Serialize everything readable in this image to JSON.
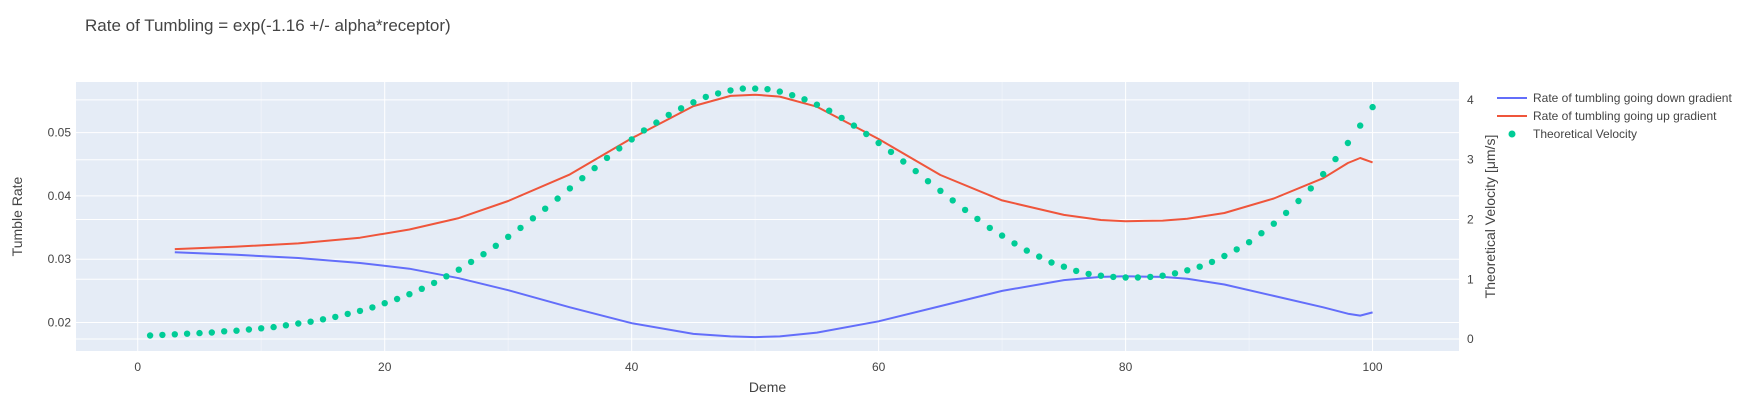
{
  "chart_data": {
    "type": "line",
    "title": "Rate of Tumbling = exp(-1.16 +/- alpha*receptor)",
    "xlabel": "Deme",
    "ylabel": "Tumble Rate",
    "y2label": "Theoretical Velocity [μm/s]",
    "xlim": [
      -5,
      107
    ],
    "ylim": [
      0.0155,
      0.058
    ],
    "y2lim": [
      -0.2,
      4.3
    ],
    "xticks": [
      0,
      20,
      40,
      60,
      80,
      100
    ],
    "yticks": [
      0.02,
      0.03,
      0.04,
      0.05
    ],
    "y2ticks": [
      0,
      1,
      2,
      3,
      4
    ],
    "grid": true,
    "legend_position": "top-right",
    "background": "#e5ecf6",
    "series": [
      {
        "name": "Rate of tumbling going down gradient",
        "mode": "lines",
        "axis": "y",
        "color": "#636efa",
        "x": [
          3,
          8,
          13,
          18,
          22,
          26,
          30,
          35,
          40,
          45,
          48,
          50,
          52,
          55,
          60,
          65,
          70,
          75,
          78,
          80,
          83,
          85,
          88,
          92,
          96,
          98,
          99,
          100
        ],
        "y": [
          0.0311,
          0.0307,
          0.0302,
          0.0294,
          0.0285,
          0.027,
          0.0251,
          0.0224,
          0.0199,
          0.0182,
          0.0178,
          0.0177,
          0.0178,
          0.0184,
          0.0202,
          0.0226,
          0.025,
          0.0267,
          0.0272,
          0.0273,
          0.0272,
          0.0269,
          0.026,
          0.0242,
          0.0224,
          0.0214,
          0.0211,
          0.0216
        ]
      },
      {
        "name": "Rate of tumbling going up gradient",
        "mode": "lines",
        "axis": "y",
        "color": "#ef553b",
        "x": [
          3,
          8,
          13,
          18,
          22,
          26,
          30,
          35,
          40,
          45,
          48,
          50,
          52,
          55,
          60,
          65,
          70,
          75,
          78,
          80,
          83,
          85,
          88,
          92,
          96,
          98,
          99,
          100
        ],
        "y": [
          0.0316,
          0.032,
          0.0325,
          0.0334,
          0.0347,
          0.0365,
          0.0392,
          0.0434,
          0.0491,
          0.0542,
          0.0558,
          0.056,
          0.0557,
          0.0541,
          0.049,
          0.0433,
          0.0393,
          0.037,
          0.0362,
          0.036,
          0.0361,
          0.0364,
          0.0373,
          0.0396,
          0.0428,
          0.0452,
          0.046,
          0.0453
        ]
      },
      {
        "name": "Theoretical Velocity",
        "mode": "markers",
        "axis": "y2",
        "color": "#00cc96",
        "x": [
          1,
          2,
          3,
          4,
          5,
          6,
          7,
          8,
          9,
          10,
          11,
          12,
          13,
          14,
          15,
          16,
          17,
          18,
          19,
          20,
          21,
          22,
          23,
          24,
          25,
          26,
          27,
          28,
          29,
          30,
          31,
          32,
          33,
          34,
          35,
          36,
          37,
          38,
          39,
          40,
          41,
          42,
          43,
          44,
          45,
          46,
          47,
          48,
          49,
          50,
          51,
          52,
          53,
          54,
          55,
          56,
          57,
          58,
          59,
          60,
          61,
          62,
          63,
          64,
          65,
          66,
          67,
          68,
          69,
          70,
          71,
          72,
          73,
          74,
          75,
          76,
          77,
          78,
          79,
          80,
          81,
          82,
          83,
          84,
          85,
          86,
          87,
          88,
          89,
          90,
          91,
          92,
          93,
          94,
          95,
          96,
          97,
          98,
          99,
          100
        ],
        "y": [
          0.06,
          0.07,
          0.08,
          0.09,
          0.1,
          0.11,
          0.13,
          0.14,
          0.16,
          0.18,
          0.2,
          0.23,
          0.26,
          0.29,
          0.33,
          0.37,
          0.42,
          0.47,
          0.53,
          0.6,
          0.67,
          0.75,
          0.84,
          0.94,
          1.05,
          1.16,
          1.29,
          1.42,
          1.56,
          1.71,
          1.86,
          2.02,
          2.18,
          2.35,
          2.52,
          2.69,
          2.86,
          3.03,
          3.19,
          3.34,
          3.49,
          3.62,
          3.75,
          3.86,
          3.96,
          4.05,
          4.11,
          4.16,
          4.19,
          4.19,
          4.18,
          4.14,
          4.08,
          4.01,
          3.92,
          3.82,
          3.7,
          3.57,
          3.43,
          3.28,
          3.13,
          2.97,
          2.81,
          2.64,
          2.48,
          2.32,
          2.16,
          2.01,
          1.86,
          1.73,
          1.6,
          1.48,
          1.38,
          1.28,
          1.21,
          1.14,
          1.09,
          1.06,
          1.04,
          1.03,
          1.03,
          1.04,
          1.06,
          1.1,
          1.15,
          1.21,
          1.29,
          1.39,
          1.5,
          1.62,
          1.77,
          1.93,
          2.11,
          2.31,
          2.52,
          2.76,
          3.01,
          3.28,
          3.57,
          3.88
        ]
      }
    ]
  }
}
